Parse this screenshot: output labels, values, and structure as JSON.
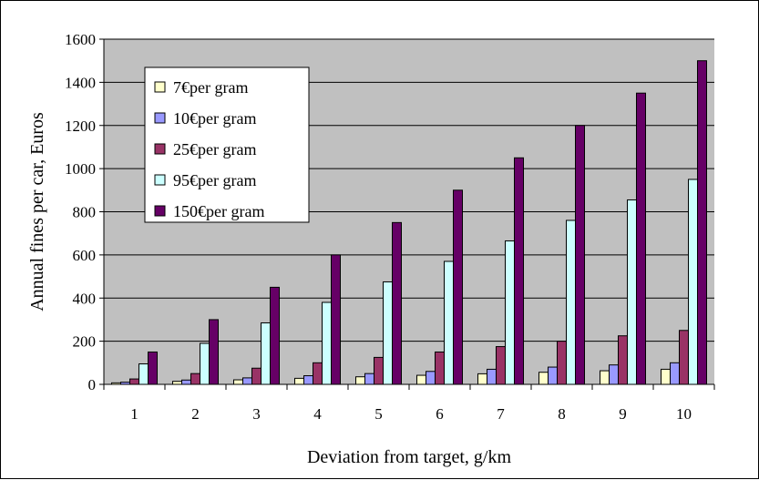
{
  "chart_data": {
    "type": "bar",
    "title": "",
    "xlabel": "Deviation from target, g/km",
    "ylabel": "Annual fines per car, Euros",
    "categories": [
      "1",
      "2",
      "3",
      "4",
      "5",
      "6",
      "7",
      "8",
      "9",
      "10"
    ],
    "ylim": [
      0,
      1600
    ],
    "yticks": [
      "0",
      "200",
      "400",
      "600",
      "800",
      "1000",
      "1200",
      "1400",
      "1600"
    ],
    "grid": true,
    "legend_position": "top-left inside plot",
    "plot_background": "#c0c0c0",
    "series": [
      {
        "name": "7€per gram",
        "color": "#ffffcc",
        "values": [
          7,
          14,
          21,
          28,
          35,
          42,
          49,
          56,
          63,
          70
        ]
      },
      {
        "name": "10€per gram",
        "color": "#9999ff",
        "values": [
          10,
          20,
          30,
          40,
          50,
          60,
          70,
          80,
          90,
          100
        ]
      },
      {
        "name": "25€per gram",
        "color": "#993366",
        "values": [
          25,
          50,
          75,
          100,
          125,
          150,
          175,
          200,
          225,
          250
        ]
      },
      {
        "name": "95€per gram",
        "color": "#ccffff",
        "values": [
          95,
          190,
          285,
          380,
          475,
          570,
          665,
          760,
          855,
          950
        ]
      },
      {
        "name": "150€per gram",
        "color": "#660066",
        "values": [
          150,
          300,
          450,
          600,
          750,
          900,
          1050,
          1200,
          1350,
          1500
        ]
      }
    ]
  }
}
